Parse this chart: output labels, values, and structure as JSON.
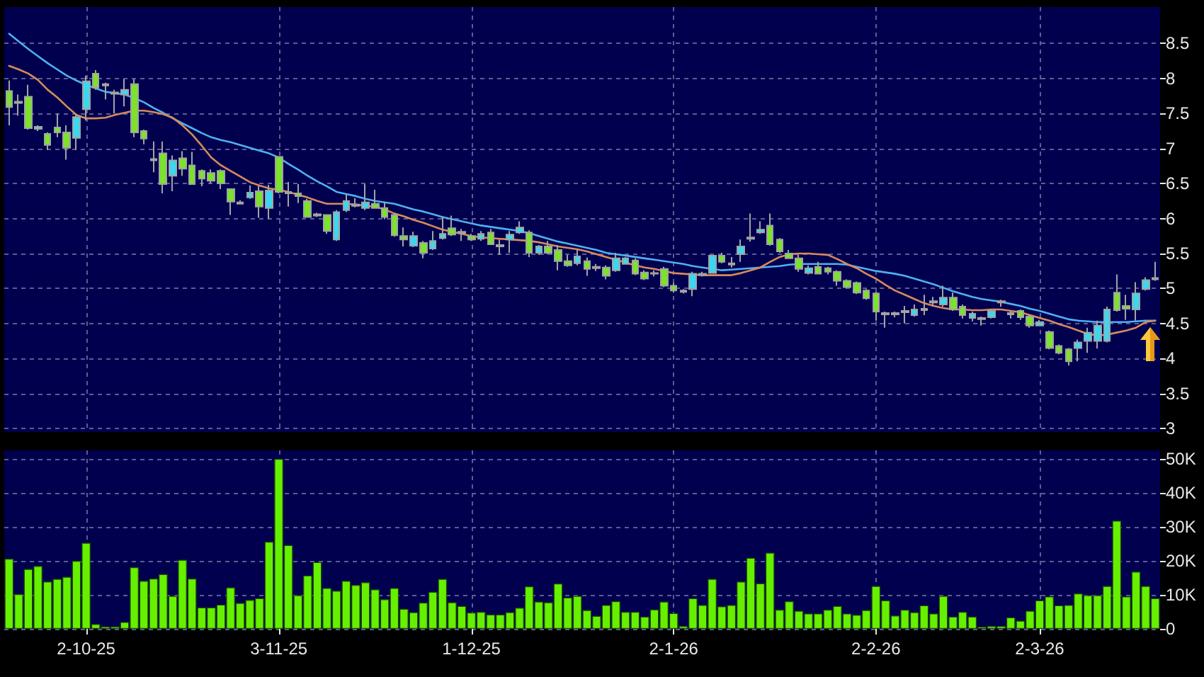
{
  "chart_data": [
    {
      "type": "candlestick",
      "categories": [
        null,
        null,
        null,
        null,
        null,
        null,
        null,
        null,
        null,
        null,
        null,
        null,
        null,
        null,
        null,
        null,
        null,
        null,
        null,
        null,
        null,
        null,
        null,
        null,
        null,
        null,
        null,
        null,
        null,
        null,
        null,
        null,
        null,
        null,
        null,
        null,
        null,
        null,
        null,
        null,
        null,
        null,
        null,
        null,
        null,
        null,
        null,
        null,
        null,
        null,
        null,
        null,
        null,
        null,
        null,
        null,
        null,
        null,
        null,
        null,
        null,
        null,
        null,
        null,
        null,
        null,
        null,
        null,
        null,
        null,
        null,
        null,
        null,
        null,
        null,
        null,
        null,
        null,
        null,
        null,
        null,
        null,
        null,
        null,
        null,
        null,
        null,
        null,
        null,
        null,
        null,
        null,
        null,
        null,
        null,
        null,
        null,
        null,
        null,
        null,
        null,
        null,
        null,
        null,
        null,
        null,
        null,
        null,
        null,
        null,
        null,
        null,
        null,
        null,
        null,
        null,
        null,
        null,
        null,
        null
      ],
      "ohlc": [
        [
          7.82,
          7.97,
          7.33,
          7.59
        ],
        [
          7.65,
          7.77,
          7.47,
          7.67
        ],
        [
          7.74,
          7.91,
          7.27,
          7.29
        ],
        [
          7.28,
          7.33,
          7.25,
          7.31
        ],
        [
          7.21,
          7.23,
          6.98,
          7.05
        ],
        [
          7.3,
          7.5,
          7.16,
          7.23
        ],
        [
          7.23,
          7.33,
          6.84,
          7.01
        ],
        [
          7.15,
          7.5,
          6.98,
          7.45
        ],
        [
          7.56,
          8.04,
          7.4,
          7.96
        ],
        [
          8.07,
          8.12,
          7.84,
          7.87
        ],
        [
          7.9,
          7.94,
          7.7,
          7.92
        ],
        [
          7.78,
          7.84,
          7.5,
          7.8
        ],
        [
          7.77,
          7.99,
          7.6,
          7.84
        ],
        [
          7.92,
          7.99,
          7.16,
          7.23
        ],
        [
          7.25,
          7.27,
          7.06,
          7.14
        ],
        [
          6.83,
          7.1,
          6.66,
          6.85
        ],
        [
          6.93,
          7.1,
          6.36,
          6.49
        ],
        [
          6.61,
          6.9,
          6.39,
          6.83
        ],
        [
          6.86,
          6.96,
          6.61,
          6.71
        ],
        [
          6.76,
          6.95,
          6.48,
          6.49
        ],
        [
          6.68,
          6.7,
          6.46,
          6.57
        ],
        [
          6.65,
          6.7,
          6.5,
          6.54
        ],
        [
          6.68,
          6.7,
          6.42,
          6.5
        ],
        [
          6.42,
          6.43,
          6.05,
          6.24
        ],
        [
          6.21,
          6.26,
          6.2,
          6.23
        ],
        [
          6.3,
          6.47,
          6.28,
          6.37
        ],
        [
          6.39,
          6.46,
          6.01,
          6.17
        ],
        [
          6.15,
          6.48,
          5.99,
          6.4
        ],
        [
          6.88,
          6.89,
          6.36,
          6.38
        ],
        [
          6.36,
          6.52,
          6.17,
          6.38
        ],
        [
          6.36,
          6.49,
          6.22,
          6.32
        ],
        [
          6.25,
          6.28,
          6.01,
          6.02
        ],
        [
          6.04,
          6.08,
          6.02,
          6.06
        ],
        [
          6.05,
          6.05,
          5.78,
          5.82
        ],
        [
          5.7,
          6.12,
          5.68,
          6.09
        ],
        [
          6.12,
          6.34,
          6.09,
          6.25
        ],
        [
          6.18,
          6.29,
          6.16,
          6.2
        ],
        [
          6.15,
          6.49,
          6.12,
          6.23
        ],
        [
          6.21,
          6.41,
          6.14,
          6.15
        ],
        [
          6.15,
          6.23,
          5.99,
          6.02
        ],
        [
          6.05,
          6.08,
          5.74,
          5.76
        ],
        [
          5.75,
          5.87,
          5.6,
          5.7
        ],
        [
          5.61,
          5.81,
          5.59,
          5.75
        ],
        [
          5.65,
          5.68,
          5.43,
          5.51
        ],
        [
          5.57,
          5.82,
          5.55,
          5.68
        ],
        [
          5.72,
          6.03,
          5.7,
          5.78
        ],
        [
          5.86,
          6.04,
          5.75,
          5.77
        ],
        [
          5.79,
          5.85,
          5.68,
          5.81
        ],
        [
          5.75,
          5.78,
          5.68,
          5.7
        ],
        [
          5.71,
          5.82,
          5.68,
          5.78
        ],
        [
          5.8,
          5.85,
          5.62,
          5.63
        ],
        [
          5.6,
          5.7,
          5.48,
          5.62
        ],
        [
          5.7,
          5.82,
          5.51,
          5.77
        ],
        [
          5.8,
          5.96,
          5.78,
          5.87
        ],
        [
          5.8,
          5.83,
          5.45,
          5.51
        ],
        [
          5.51,
          5.62,
          5.48,
          5.6
        ],
        [
          5.6,
          5.68,
          5.49,
          5.51
        ],
        [
          5.55,
          5.62,
          5.26,
          5.39
        ],
        [
          5.39,
          5.48,
          5.31,
          5.33
        ],
        [
          5.36,
          5.55,
          5.33,
          5.46
        ],
        [
          5.39,
          5.44,
          5.18,
          5.28
        ],
        [
          5.29,
          5.35,
          5.25,
          5.31
        ],
        [
          5.3,
          5.33,
          5.13,
          5.18
        ],
        [
          5.26,
          5.51,
          5.24,
          5.43
        ],
        [
          5.35,
          5.45,
          5.34,
          5.43
        ],
        [
          5.4,
          5.43,
          5.19,
          5.21
        ],
        [
          5.23,
          5.26,
          5.12,
          5.14
        ],
        [
          5.21,
          5.26,
          5.17,
          5.22
        ],
        [
          5.28,
          5.31,
          5.02,
          5.04
        ],
        [
          5.04,
          5.08,
          4.94,
          4.97
        ],
        [
          4.95,
          4.99,
          4.93,
          4.97
        ],
        [
          4.99,
          5.24,
          4.89,
          5.21
        ],
        [
          5.19,
          5.24,
          5.17,
          5.21
        ],
        [
          5.22,
          5.48,
          5.21,
          5.47
        ],
        [
          5.47,
          5.51,
          5.36,
          5.38
        ],
        [
          5.34,
          5.45,
          5.3,
          5.36
        ],
        [
          5.49,
          5.7,
          5.38,
          5.6
        ],
        [
          5.71,
          6.07,
          5.67,
          5.73
        ],
        [
          5.8,
          5.96,
          5.78,
          5.84
        ],
        [
          5.9,
          6.07,
          5.61,
          5.63
        ],
        [
          5.7,
          5.72,
          5.51,
          5.53
        ],
        [
          5.5,
          5.55,
          5.42,
          5.43
        ],
        [
          5.43,
          5.48,
          5.24,
          5.28
        ],
        [
          5.22,
          5.33,
          5.2,
          5.29
        ],
        [
          5.31,
          5.38,
          5.2,
          5.21
        ],
        [
          5.29,
          5.31,
          5.2,
          5.24
        ],
        [
          5.24,
          5.26,
          5.04,
          5.11
        ],
        [
          5.11,
          5.13,
          5.0,
          5.02
        ],
        [
          5.08,
          5.1,
          4.92,
          4.94
        ],
        [
          4.97,
          4.99,
          4.84,
          4.86
        ],
        [
          4.93,
          4.95,
          4.54,
          4.67
        ],
        [
          4.63,
          4.67,
          4.44,
          4.65
        ],
        [
          4.63,
          4.67,
          4.59,
          4.65
        ],
        [
          4.66,
          4.75,
          4.5,
          4.68
        ],
        [
          4.62,
          4.77,
          4.6,
          4.7
        ],
        [
          4.69,
          4.91,
          4.62,
          4.71
        ],
        [
          4.8,
          4.88,
          4.74,
          4.82
        ],
        [
          4.77,
          5.04,
          4.74,
          4.87
        ],
        [
          4.87,
          4.94,
          4.68,
          4.7
        ],
        [
          4.74,
          4.77,
          4.57,
          4.62
        ],
        [
          4.58,
          4.67,
          4.53,
          4.64
        ],
        [
          4.56,
          4.6,
          4.47,
          4.58
        ],
        [
          4.59,
          4.7,
          4.57,
          4.68
        ],
        [
          4.8,
          4.84,
          4.74,
          4.82
        ],
        [
          4.63,
          4.68,
          4.57,
          4.65
        ],
        [
          4.68,
          4.7,
          4.55,
          4.59
        ],
        [
          4.6,
          4.63,
          4.44,
          4.47
        ],
        [
          4.47,
          4.55,
          4.46,
          4.52
        ],
        [
          4.38,
          4.4,
          4.13,
          4.15
        ],
        [
          4.18,
          4.2,
          4.06,
          4.08
        ],
        [
          4.13,
          4.15,
          3.9,
          3.96
        ],
        [
          4.15,
          4.27,
          3.96,
          4.23
        ],
        [
          4.25,
          4.44,
          4.08,
          4.37
        ],
        [
          4.25,
          4.54,
          4.14,
          4.47
        ],
        [
          4.25,
          4.74,
          4.23,
          4.7
        ],
        [
          4.94,
          5.2,
          4.67,
          4.69
        ],
        [
          4.75,
          4.91,
          4.55,
          4.71
        ],
        [
          4.7,
          5.09,
          4.54,
          4.93
        ],
        [
          4.99,
          5.16,
          4.97,
          5.12
        ],
        [
          5.13,
          5.38,
          5.11,
          5.15
        ]
      ],
      "colors": [
        "#7be32a",
        "#a0a0a0",
        "#7be32a",
        "#3ad8f0",
        "#7be32a",
        "#7be32a",
        "#7be32a",
        "#3ad8f0",
        "#3ad8f0",
        "#7be32a",
        "#a0a0a0",
        "#a0a0a0",
        "#3ad8f0",
        "#7be32a",
        "#7be32a",
        "#a0a0a0",
        "#7be32a",
        "#3ad8f0",
        "#7be32a",
        "#7be32a",
        "#7be32a",
        "#7be32a",
        "#7be32a",
        "#7be32a",
        "#a0a0a0",
        "#3ad8f0",
        "#7be32a",
        "#3ad8f0",
        "#7be32a",
        "#a0a0a0",
        "#7be32a",
        "#7be32a",
        "#a0a0a0",
        "#7be32a",
        "#3ad8f0",
        "#3ad8f0",
        "#a0a0a0",
        "#3ad8f0",
        "#7be32a",
        "#7be32a",
        "#7be32a",
        "#7be32a",
        "#3ad8f0",
        "#7be32a",
        "#3ad8f0",
        "#3ad8f0",
        "#7be32a",
        "#a0a0a0",
        "#7be32a",
        "#3ad8f0",
        "#7be32a",
        "#a0a0a0",
        "#3ad8f0",
        "#3ad8f0",
        "#7be32a",
        "#3ad8f0",
        "#7be32a",
        "#7be32a",
        "#7be32a",
        "#3ad8f0",
        "#7be32a",
        "#a0a0a0",
        "#7be32a",
        "#3ad8f0",
        "#3ad8f0",
        "#7be32a",
        "#7be32a",
        "#3ad8f0",
        "#7be32a",
        "#7be32a",
        "#a0a0a0",
        "#3ad8f0",
        "#a0a0a0",
        "#3ad8f0",
        "#7be32a",
        "#a0a0a0",
        "#3ad8f0",
        "#a0a0a0",
        "#3ad8f0",
        "#7be32a",
        "#7be32a",
        "#7be32a",
        "#7be32a",
        "#3ad8f0",
        "#7be32a",
        "#7be32a",
        "#7be32a",
        "#7be32a",
        "#7be32a",
        "#7be32a",
        "#7be32a",
        "#a0a0a0",
        "#a0a0a0",
        "#a0a0a0",
        "#3ad8f0",
        "#a0a0a0",
        "#a0a0a0",
        "#3ad8f0",
        "#7be32a",
        "#7be32a",
        "#3ad8f0",
        "#a0a0a0",
        "#3ad8f0",
        "#a0a0a0",
        "#a0a0a0",
        "#7be32a",
        "#7be32a",
        "#3ad8f0",
        "#7be32a",
        "#7be32a",
        "#7be32a",
        "#3ad8f0",
        "#3ad8f0",
        "#3ad8f0",
        "#3ad8f0",
        "#7be32a",
        "#7be32a",
        "#3ad8f0",
        "#3ad8f0",
        "#a0a0a0"
      ],
      "series": [
        {
          "type": "line",
          "color": "#4fb0f0",
          "values": [
            8.64,
            8.53,
            8.42,
            8.32,
            8.22,
            8.13,
            8.04,
            7.97,
            7.91,
            7.86,
            7.81,
            7.79,
            7.77,
            7.72,
            7.66,
            7.58,
            7.51,
            7.43,
            7.36,
            7.29,
            7.22,
            7.16,
            7.12,
            7.09,
            7.05,
            7.01,
            6.97,
            6.93,
            6.87,
            6.78,
            6.7,
            6.61,
            6.53,
            6.46,
            6.38,
            6.35,
            6.32,
            6.28,
            6.25,
            6.23,
            6.21,
            6.17,
            6.13,
            6.1,
            6.06,
            6.02,
            5.99,
            5.96,
            5.93,
            5.9,
            5.88,
            5.86,
            5.84,
            5.82,
            5.79,
            5.75,
            5.71,
            5.67,
            5.64,
            5.61,
            5.58,
            5.55,
            5.51,
            5.49,
            5.47,
            5.45,
            5.43,
            5.41,
            5.39,
            5.37,
            5.35,
            5.32,
            5.3,
            5.28,
            5.26,
            5.27,
            5.28,
            5.29,
            5.3,
            5.31,
            5.32,
            5.34,
            5.35,
            5.35,
            5.35,
            5.35,
            5.35,
            5.34,
            5.31,
            5.28,
            5.25,
            5.23,
            5.21,
            5.18,
            5.14,
            5.1,
            5.06,
            5.01,
            4.96,
            4.92,
            4.88,
            4.85,
            4.83,
            4.81,
            4.78,
            4.75,
            4.71,
            4.68,
            4.64,
            4.6,
            4.56,
            4.54,
            4.53,
            4.52,
            4.52,
            4.52,
            4.52,
            4.53,
            4.54,
            4.54
          ]
        },
        {
          "type": "line",
          "color": "#d98a5a",
          "values": [
            8.18,
            8.13,
            8.07,
            7.98,
            7.84,
            7.73,
            7.6,
            7.48,
            7.43,
            7.43,
            7.44,
            7.48,
            7.51,
            7.54,
            7.54,
            7.52,
            7.49,
            7.44,
            7.33,
            7.2,
            7.04,
            6.87,
            6.76,
            6.68,
            6.6,
            6.52,
            6.47,
            6.43,
            6.41,
            6.38,
            6.34,
            6.3,
            6.25,
            6.21,
            6.21,
            6.21,
            6.2,
            6.18,
            6.17,
            6.13,
            6.07,
            6.03,
            5.98,
            5.94,
            5.89,
            5.84,
            5.81,
            5.78,
            5.75,
            5.73,
            5.72,
            5.71,
            5.7,
            5.69,
            5.68,
            5.66,
            5.63,
            5.6,
            5.58,
            5.56,
            5.53,
            5.49,
            5.45,
            5.41,
            5.37,
            5.33,
            5.3,
            5.28,
            5.25,
            5.22,
            5.21,
            5.2,
            5.19,
            5.19,
            5.19,
            5.19,
            5.22,
            5.26,
            5.3,
            5.38,
            5.45,
            5.49,
            5.5,
            5.5,
            5.49,
            5.48,
            5.42,
            5.35,
            5.29,
            5.21,
            5.14,
            5.05,
            4.97,
            4.91,
            4.85,
            4.79,
            4.75,
            4.72,
            4.7,
            4.7,
            4.69,
            4.69,
            4.7,
            4.7,
            4.68,
            4.66,
            4.62,
            4.58,
            4.54,
            4.49,
            4.45,
            4.4,
            4.35,
            4.33,
            4.34,
            4.37,
            4.4,
            4.44,
            4.52,
            4.54
          ]
        }
      ],
      "ylim": [
        2.95,
        9.02
      ],
      "yticks": [
        3,
        3.5,
        4,
        4.5,
        5,
        5.5,
        6,
        6.5,
        7,
        7.5,
        8,
        8.5
      ],
      "grid": true,
      "tick_labels": "y",
      "marker": "none"
    },
    {
      "type": "bar",
      "categories": [
        null,
        null,
        null,
        null,
        null,
        null,
        null,
        null,
        "2-10-25",
        null,
        null,
        null,
        null,
        null,
        null,
        null,
        null,
        null,
        null,
        null,
        null,
        null,
        null,
        null,
        null,
        null,
        null,
        null,
        "3-11-25",
        null,
        null,
        null,
        null,
        null,
        null,
        null,
        null,
        null,
        null,
        null,
        null,
        null,
        null,
        null,
        null,
        null,
        null,
        null,
        "1-12-25",
        null,
        null,
        null,
        null,
        null,
        null,
        null,
        null,
        null,
        null,
        null,
        null,
        null,
        null,
        null,
        null,
        null,
        null,
        null,
        null,
        "2-1-26",
        null,
        null,
        null,
        null,
        null,
        null,
        null,
        null,
        null,
        null,
        null,
        null,
        null,
        null,
        null,
        null,
        null,
        null,
        null,
        null,
        "2-2-26",
        null,
        null,
        null,
        null,
        null,
        null,
        null,
        null,
        null,
        null,
        null,
        null,
        null,
        null,
        null,
        null,
        "2-3-26",
        null,
        null,
        null,
        null,
        null,
        null,
        null,
        null,
        null,
        null,
        null,
        null
      ],
      "values": [
        20600,
        10200,
        17600,
        18500,
        13900,
        14700,
        15300,
        20000,
        25300,
        1400,
        700,
        700,
        2000,
        18100,
        14100,
        14800,
        16100,
        9700,
        20300,
        14800,
        6300,
        6300,
        7100,
        12200,
        7600,
        8500,
        9000,
        25600,
        50000,
        24600,
        9900,
        15700,
        19600,
        12000,
        11200,
        14100,
        12900,
        13700,
        11600,
        8700,
        12000,
        5900,
        4900,
        7700,
        10900,
        14700,
        7800,
        6700,
        4800,
        5000,
        4200,
        4200,
        4900,
        6200,
        12500,
        8000,
        7800,
        13300,
        9200,
        9700,
        5500,
        3800,
        7000,
        8100,
        5000,
        5000,
        3600,
        5700,
        8000,
        4600,
        800,
        9000,
        7000,
        14700,
        6600,
        7000,
        13900,
        20900,
        13400,
        22400,
        5600,
        8100,
        5300,
        4500,
        4500,
        5600,
        6700,
        4500,
        4100,
        5500,
        12600,
        8400,
        3900,
        5600,
        4900,
        6900,
        4500,
        9700,
        3600,
        5000,
        3600,
        600,
        800,
        800,
        3400,
        2400,
        5300,
        8400,
        9500,
        6900,
        7000,
        10400,
        9900,
        9900,
        12600,
        31800,
        9500,
        16800,
        12600,
        9000
      ],
      "color": "#66f000",
      "ylim": [
        0,
        52500
      ],
      "yticks": [
        0,
        {
          "value": 10000,
          "label": "10K"
        },
        {
          "value": 20000,
          "label": "20K"
        },
        {
          "value": 30000,
          "label": "30K"
        },
        {
          "value": 40000,
          "label": "40K"
        },
        {
          "value": 50000,
          "label": "50K"
        }
      ],
      "grid": true
    }
  ]
}
